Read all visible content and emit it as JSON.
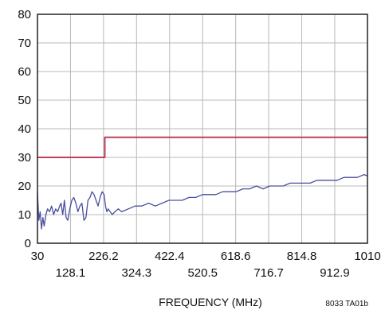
{
  "chart_data": {
    "type": "line",
    "xlabel": "FREQUENCY (MHz)",
    "ylabel": "",
    "figure_id": "8033 TA01b",
    "xlim": [
      30,
      1010
    ],
    "ylim": [
      0,
      80
    ],
    "grid": true,
    "x_ticks_upper": [
      "30",
      "226.2",
      "422.4",
      "618.6",
      "814.8",
      "1010"
    ],
    "x_ticks_lower": [
      "128.1",
      "324.3",
      "520.5",
      "716.7",
      "912.9"
    ],
    "x_tick_values_upper": [
      30,
      226.2,
      422.4,
      618.6,
      814.8,
      1010
    ],
    "x_tick_values_lower": [
      128.1,
      324.3,
      520.5,
      716.7,
      912.9
    ],
    "y_ticks": [
      "0",
      "10",
      "20",
      "30",
      "40",
      "50",
      "60",
      "70",
      "80"
    ],
    "y_tick_values": [
      0,
      10,
      20,
      30,
      40,
      50,
      60,
      70,
      80
    ],
    "series": [
      {
        "color": "#c0405a",
        "x": [
          30,
          230,
          230,
          1010
        ],
        "y": [
          30,
          30,
          37,
          37
        ]
      },
      {
        "color": "#4a4fa0",
        "x": [
          30,
          34,
          38,
          42,
          46,
          50,
          55,
          60,
          66,
          72,
          78,
          84,
          90,
          96,
          100,
          105,
          110,
          115,
          120,
          126,
          132,
          138,
          144,
          150,
          156,
          162,
          168,
          174,
          180,
          186,
          192,
          198,
          204,
          210,
          216,
          222,
          228,
          232,
          236,
          240,
          246,
          252,
          260,
          270,
          280,
          300,
          320,
          340,
          360,
          380,
          400,
          420,
          440,
          460,
          480,
          500,
          520,
          540,
          560,
          580,
          600,
          620,
          640,
          660,
          680,
          700,
          720,
          740,
          760,
          780,
          800,
          820,
          840,
          860,
          880,
          900,
          920,
          940,
          960,
          980,
          1000,
          1010
        ],
        "y": [
          18,
          8,
          11,
          5,
          9,
          6,
          10,
          12,
          11,
          13,
          10,
          12,
          11,
          13,
          14,
          10,
          15,
          9,
          8,
          12,
          15,
          16,
          14,
          11,
          13,
          14,
          8,
          9,
          15,
          16,
          18,
          17,
          15,
          13,
          16,
          18,
          17,
          13,
          11,
          12,
          11,
          10,
          11,
          12,
          11,
          12,
          13,
          13,
          14,
          13,
          14,
          15,
          15,
          15,
          16,
          16,
          17,
          17,
          17,
          18,
          18,
          18,
          19,
          19,
          20,
          19,
          20,
          20,
          20,
          21,
          21,
          21,
          21,
          22,
          22,
          22,
          22,
          23,
          23,
          23,
          24,
          23.5
        ]
      }
    ]
  }
}
